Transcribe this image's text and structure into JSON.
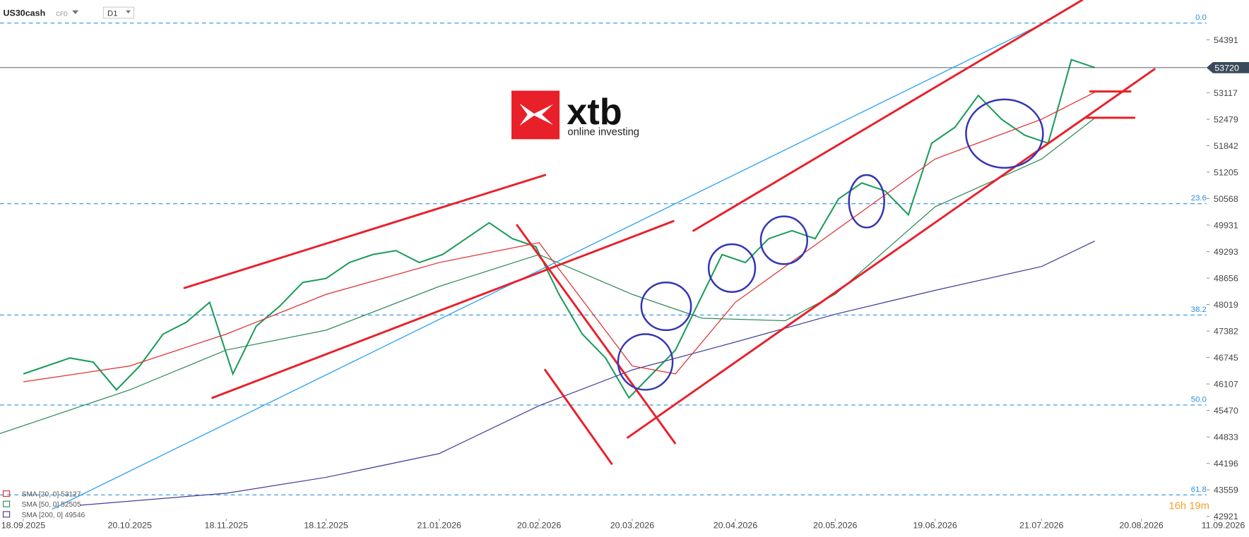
{
  "header": {
    "symbol": "US30cash",
    "instrument": "CFD",
    "interval": "D1"
  },
  "logo": {
    "name": "xtb",
    "tagline": "online investing"
  },
  "countdown": "16h 19m",
  "chart_data": {
    "type": "line",
    "xlim": [
      "11.09.2025",
      "11.09.2026"
    ],
    "ylim": [
      42864,
      55348
    ],
    "xticks": [
      "18.09.2025",
      "20.10.2025",
      "18.11.2025",
      "18.12.2025",
      "21.01.2026",
      "20.02.2026",
      "20.03.2026",
      "20.04.2026",
      "20.05.2026",
      "19.06.2026",
      "21.07.2026",
      "20.08.2026",
      "11.09.2026"
    ],
    "yticks": [
      54391,
      53117,
      52479,
      51842,
      51205,
      50568,
      49931,
      49293,
      48656,
      48019,
      47382,
      46745,
      46107,
      45470,
      44833,
      44196,
      43559,
      42921
    ],
    "last_price": 53720,
    "fib_levels": [
      {
        "label": "0.0",
        "price": 54793
      },
      {
        "label": "23.6",
        "price": 50446
      },
      {
        "label": "38.2",
        "price": 47765
      },
      {
        "label": "50.0",
        "price": 45601
      },
      {
        "label": "61.8",
        "price": 43437
      }
    ],
    "series": [
      {
        "name": "US30cash",
        "color": "#1a9b5a",
        "x": [
          "18.09.2025",
          "25.09.2025",
          "02.10.2025",
          "09.10.2025",
          "16.10.2025",
          "23.10.2025",
          "30.10.2025",
          "06.11.2025",
          "13.11.2025",
          "20.11.2025",
          "27.11.2025",
          "04.12.2025",
          "11.12.2025",
          "18.12.2025",
          "25.12.2025",
          "01.01.2026",
          "08.01.2026",
          "15.01.2026",
          "22.01.2026",
          "29.01.2026",
          "05.02.2026",
          "12.02.2026",
          "19.02.2026",
          "26.02.2026",
          "05.03.2026",
          "12.03.2026",
          "19.03.2026",
          "26.03.2026",
          "02.04.2026",
          "09.04.2026",
          "16.04.2026",
          "23.04.2026",
          "30.04.2026",
          "07.05.2026",
          "14.05.2026",
          "21.05.2026",
          "28.05.2026",
          "04.06.2026",
          "11.06.2026",
          "18.06.2026",
          "25.06.2026",
          "02.07.2026",
          "09.07.2026",
          "16.07.2026",
          "23.07.2026",
          "30.07.2026",
          "06.08.2026"
        ],
        "values": [
          46348,
          46540,
          46731,
          46635,
          45965,
          46540,
          47306,
          47593,
          48072,
          46348,
          47497,
          47976,
          48551,
          48646,
          49029,
          49221,
          49317,
          49029,
          49221,
          49604,
          49987,
          49604,
          49412,
          48263,
          47306,
          46731,
          45774,
          46348,
          46923,
          48072,
          49221,
          49029,
          49604,
          49795,
          49604,
          50561,
          50944,
          50753,
          50178,
          51902,
          52285,
          53051,
          52476,
          52093,
          51902,
          53912,
          53721
        ]
      },
      {
        "name": "SMA [200, 0]",
        "color": "#3f3f9a",
        "x": [
          "05.10.2025",
          "18.11.2025",
          "18.12.2025",
          "21.01.2026",
          "20.02.2026",
          "20.03.2026",
          "20.04.2026",
          "20.05.2026",
          "19.06.2026",
          "21.07.2026",
          "06.08.2026"
        ],
        "values": [
          43188,
          43476,
          43859,
          44433,
          45582,
          46444,
          47114,
          47784,
          48359,
          48933,
          49546
        ]
      },
      {
        "name": "SMA [50, 0]",
        "color": "#2e8b57",
        "x": [
          "11.09.2025",
          "20.10.2025",
          "18.11.2025",
          "18.12.2025",
          "21.01.2026",
          "20.02.2026",
          "20.03.2026",
          "10.04.2026",
          "05.05.2026",
          "20.05.2026",
          "19.06.2026",
          "21.07.2026",
          "06.08.2026"
        ],
        "values": [
          44912,
          45965,
          46923,
          47402,
          48455,
          49221,
          48263,
          47689,
          47630,
          48263,
          50370,
          51519,
          52505
        ]
      },
      {
        "name": "SMA [20, 0]",
        "color": "#e03030",
        "x": [
          "18.09.2025",
          "20.10.2025",
          "18.11.2025",
          "18.12.2025",
          "21.01.2026",
          "20.02.2026",
          "20.03.2026",
          "02.04.2026",
          "20.04.2026",
          "20.05.2026",
          "19.06.2026",
          "21.07.2026",
          "06.08.2026"
        ],
        "values": [
          46157,
          46540,
          47306,
          48263,
          49029,
          49508,
          46540,
          46350,
          48072,
          49795,
          51520,
          52476,
          53127
        ]
      }
    ]
  }
}
